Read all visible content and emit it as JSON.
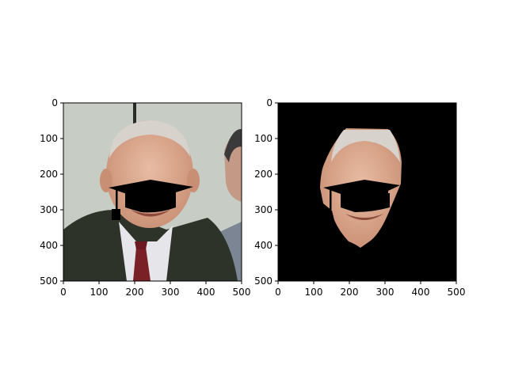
{
  "figure": {
    "panels": [
      {
        "id": "left",
        "content": "original-photo-with-mortarboard-overlay",
        "xlim": [
          0,
          500
        ],
        "ylim": [
          500,
          0
        ],
        "x_ticks": [
          "0",
          "100",
          "200",
          "300",
          "400",
          "500"
        ],
        "y_ticks": [
          "0",
          "100",
          "200",
          "300",
          "400",
          "500"
        ]
      },
      {
        "id": "right",
        "content": "segmented-face-on-black-with-mortarboard-overlay",
        "xlim": [
          0,
          500
        ],
        "ylim": [
          500,
          0
        ],
        "x_ticks": [
          "0",
          "100",
          "200",
          "300",
          "400",
          "500"
        ],
        "y_ticks": [
          "0",
          "100",
          "200",
          "300",
          "400",
          "500"
        ]
      }
    ],
    "colors": {
      "background": "#ffffff",
      "photo_backdrop": "#c7ccc4",
      "suit": "#2d3329",
      "shirt": "#e6e6ea",
      "tie": "#7a2027",
      "skin": "#d9a78e",
      "hair": "#d8d2cc",
      "mask_background": "#000000",
      "overlay": "#000000"
    }
  }
}
